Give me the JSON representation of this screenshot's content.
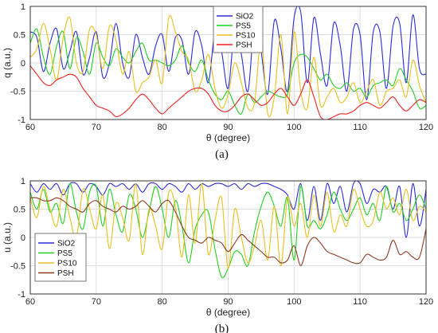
{
  "chart_data": [
    {
      "type": "line",
      "panel_label": "(a)",
      "xlabel": "θ (degree)",
      "ylabel": "q (a.u.)",
      "xlim": [
        60,
        120
      ],
      "ylim": [
        -1,
        1
      ],
      "xticks": [
        "60",
        "70",
        "80",
        "90",
        "100",
        "110",
        "120"
      ],
      "yticks": [
        "1",
        "0.5",
        "0",
        "-0.5",
        "-1"
      ],
      "grid": true,
      "legend_position": "top-center",
      "x": [
        60,
        61,
        62,
        63,
        64,
        65,
        66,
        67,
        68,
        69,
        70,
        71,
        72,
        73,
        74,
        75,
        76,
        77,
        78,
        79,
        80,
        81,
        82,
        83,
        84,
        85,
        86,
        87,
        88,
        89,
        90,
        91,
        92,
        93,
        94,
        95,
        96,
        97,
        98,
        99,
        100,
        101,
        102,
        103,
        104,
        105,
        106,
        107,
        108,
        109,
        110,
        111,
        112,
        113,
        114,
        115,
        116,
        117,
        118,
        119,
        120
      ],
      "series": [
        {
          "name": "SiO2",
          "color": "#2b2bd6",
          "values": [
            0.55,
            0.45,
            -0.15,
            0.35,
            0.6,
            -0.1,
            0.2,
            0.55,
            -0.2,
            0.1,
            0.55,
            -0.25,
            0.0,
            0.7,
            0.0,
            -0.25,
            0.5,
            0.1,
            -0.2,
            0.3,
            0.5,
            -0.15,
            0.45,
            0.4,
            -0.2,
            0.55,
            0.3,
            -0.35,
            0.55,
            0.2,
            -0.45,
            0.6,
            0.15,
            -0.5,
            0.7,
            0.2,
            -0.55,
            0.75,
            0.25,
            -0.5,
            0.8,
            0.9,
            -0.35,
            0.8,
            0.15,
            -0.4,
            0.7,
            0.3,
            -0.5,
            0.6,
            0.5,
            -0.65,
            0.55,
            0.55,
            -0.45,
            0.65,
            0.7,
            -0.35,
            0.85,
            -0.1,
            -0.2
          ]
        },
        {
          "name": "PS5",
          "color": "#22d022",
          "values": [
            0.35,
            0.6,
            0.1,
            -0.2,
            0.3,
            0.55,
            -0.1,
            0.45,
            0.2,
            -0.2,
            0.35,
            0.1,
            -0.05,
            0.25,
            0.1,
            0.0,
            0.2,
            0.35,
            0.05,
            0.05,
            0.0,
            -0.05,
            0.05,
            0.3,
            0.0,
            -0.15,
            0.05,
            -0.3,
            -0.55,
            -0.65,
            -0.5,
            -0.75,
            -0.9,
            -0.55,
            -0.7,
            -0.6,
            -0.5,
            -0.55,
            -0.6,
            -0.55,
            0.0,
            0.15,
            0.1,
            -0.1,
            -0.3,
            -0.2,
            -0.4,
            -0.45,
            -0.35,
            -0.5,
            -0.45,
            -0.6,
            -0.4,
            -0.35,
            -0.3,
            -0.4,
            -0.1,
            -0.3,
            -0.5,
            -0.8,
            -0.75
          ]
        },
        {
          "name": "PS10",
          "color": "#e6c020",
          "values": [
            0.1,
            0.25,
            0.7,
            0.25,
            -0.3,
            0.45,
            0.8,
            0.0,
            -0.15,
            0.6,
            0.5,
            -0.1,
            0.65,
            0.4,
            -0.2,
            0.2,
            -0.5,
            -0.35,
            -0.25,
            0.05,
            -0.35,
            0.8,
            0.55,
            0.2,
            0.05,
            -0.5,
            -0.3,
            0.15,
            -0.45,
            -0.8,
            -0.55,
            0.0,
            -0.35,
            -0.8,
            -0.7,
            0.4,
            -0.9,
            -0.6,
            0.5,
            -0.9,
            0.55,
            -0.5,
            -0.8,
            0.1,
            -0.75,
            -0.6,
            -0.45,
            -0.7,
            -0.6,
            -0.35,
            -0.7,
            -0.5,
            -0.3,
            -0.75,
            -0.5,
            -0.45,
            -0.3,
            -0.6,
            0.05,
            -0.4,
            -0.7
          ]
        },
        {
          "name": "PSH",
          "color": "#ee2222",
          "values": [
            -0.05,
            -0.2,
            -0.35,
            -0.4,
            -0.3,
            -0.25,
            -0.2,
            -0.25,
            -0.45,
            -0.6,
            -0.75,
            -0.8,
            -0.85,
            -0.95,
            -0.9,
            -0.8,
            -0.65,
            -0.55,
            -0.65,
            -0.8,
            -0.9,
            -0.8,
            -0.7,
            -0.6,
            -0.5,
            -0.45,
            -0.45,
            -0.55,
            -0.75,
            -0.85,
            -0.85,
            -0.75,
            -0.6,
            -0.55,
            -0.65,
            -0.75,
            -0.7,
            -0.55,
            -0.45,
            -0.6,
            -0.75,
            -0.55,
            -0.3,
            -0.6,
            -0.95,
            -1.0,
            -0.95,
            -0.9,
            -0.9,
            -0.85,
            -0.75,
            -0.7,
            -0.75,
            -0.8,
            -0.7,
            -0.6,
            -0.75,
            -0.85,
            -0.75,
            -0.65,
            -0.7
          ]
        }
      ]
    },
    {
      "type": "line",
      "panel_label": "(b)",
      "xlabel": "θ (degree)",
      "ylabel": "u (a.u.)",
      "xlim": [
        60,
        120
      ],
      "ylim": [
        -1,
        1
      ],
      "xticks": [
        "60",
        "70",
        "80",
        "90",
        "100",
        "110",
        "120"
      ],
      "yticks": [
        "1",
        "0.5",
        "0",
        "-0.5",
        "-1"
      ],
      "grid": true,
      "legend_position": "bottom-left",
      "x": [
        60,
        61,
        62,
        63,
        64,
        65,
        66,
        67,
        68,
        69,
        70,
        71,
        72,
        73,
        74,
        75,
        76,
        77,
        78,
        79,
        80,
        81,
        82,
        83,
        84,
        85,
        86,
        87,
        88,
        89,
        90,
        91,
        92,
        93,
        94,
        95,
        96,
        97,
        98,
        99,
        100,
        101,
        102,
        103,
        104,
        105,
        106,
        107,
        108,
        109,
        110,
        111,
        112,
        113,
        114,
        115,
        116,
        117,
        118,
        119,
        120
      ],
      "series": [
        {
          "name": "SiO2",
          "color": "#2b2bd6",
          "values": [
            0.95,
            0.8,
            0.95,
            0.85,
            0.95,
            0.75,
            0.95,
            0.95,
            0.8,
            0.95,
            0.9,
            0.75,
            0.95,
            0.9,
            0.95,
            0.85,
            0.95,
            0.8,
            0.95,
            0.95,
            0.85,
            0.95,
            0.9,
            0.8,
            0.95,
            0.85,
            0.95,
            0.9,
            0.95,
            0.95,
            0.9,
            0.95,
            0.85,
            0.95,
            0.9,
            0.95,
            0.95,
            0.9,
            0.85,
            0.75,
            0.5,
            0.95,
            0.3,
            0.9,
            0.3,
            0.95,
            0.6,
            0.9,
            0.45,
            0.95,
            0.95,
            0.6,
            0.85,
            0.8,
            0.9,
            0.5,
            0.9,
            0.0,
            0.95,
            0.2,
            0.85
          ]
        },
        {
          "name": "PS5",
          "color": "#22d022",
          "values": [
            0.8,
            0.5,
            0.85,
            0.45,
            0.6,
            0.25,
            0.95,
            0.45,
            0.15,
            0.8,
            0.9,
            0.2,
            0.85,
            0.4,
            0.1,
            0.75,
            0.5,
            0.0,
            0.45,
            0.9,
            0.5,
            0.0,
            0.65,
            0.2,
            -0.45,
            0.15,
            0.4,
            0.45,
            -0.2,
            -0.7,
            -0.55,
            -0.25,
            -0.3,
            -0.5,
            0.1,
            0.55,
            0.8,
            0.55,
            0.2,
            0.7,
            -0.4,
            0.9,
            0.2,
            0.3,
            0.15,
            0.4,
            0.8,
            0.5,
            0.3,
            0.5,
            0.7,
            0.4,
            0.6,
            0.3,
            0.9,
            0.45,
            0.6,
            0.3,
            0.5,
            0.75,
            0.5
          ]
        },
        {
          "name": "PS10",
          "color": "#e6c020",
          "values": [
            0.7,
            0.35,
            0.9,
            0.5,
            0.2,
            0.85,
            0.35,
            0.0,
            0.85,
            0.5,
            0.15,
            0.75,
            -0.2,
            0.6,
            0.35,
            -0.05,
            0.95,
            -0.3,
            0.5,
            0.2,
            -0.2,
            0.8,
            0.55,
            -0.35,
            0.75,
            -0.1,
            0.95,
            -0.3,
            0.3,
            0.7,
            -0.55,
            0.5,
            0.0,
            -0.45,
            -0.15,
            0.3,
            -0.4,
            0.55,
            -0.5,
            0.7,
            0.2,
            0.6,
            0.0,
            0.75,
            0.2,
            0.8,
            0.1,
            0.4,
            0.2,
            0.85,
            0.5,
            0.2,
            0.3,
            0.8,
            0.5,
            0.7,
            0.4,
            0.85,
            0.3,
            0.55,
            0.45
          ]
        },
        {
          "name": "PSH",
          "color": "#8b3a22",
          "values": [
            0.7,
            0.7,
            0.65,
            0.65,
            0.7,
            0.65,
            0.55,
            0.5,
            0.45,
            0.6,
            0.65,
            0.55,
            0.5,
            0.45,
            0.55,
            0.5,
            0.55,
            0.65,
            0.55,
            0.45,
            0.6,
            0.65,
            0.45,
            0.2,
            0.0,
            -0.05,
            -0.1,
            0.0,
            -0.05,
            -0.1,
            -0.25,
            -0.1,
            0.05,
            -0.05,
            -0.15,
            -0.25,
            -0.35,
            -0.35,
            -0.45,
            -0.4,
            -0.15,
            -0.5,
            -0.15,
            0.0,
            -0.1,
            -0.25,
            -0.3,
            -0.35,
            -0.4,
            -0.45,
            -0.45,
            -0.3,
            -0.35,
            -0.4,
            -0.35,
            -0.05,
            -0.3,
            -0.25,
            -0.35,
            -0.35,
            0.15
          ]
        }
      ]
    }
  ]
}
